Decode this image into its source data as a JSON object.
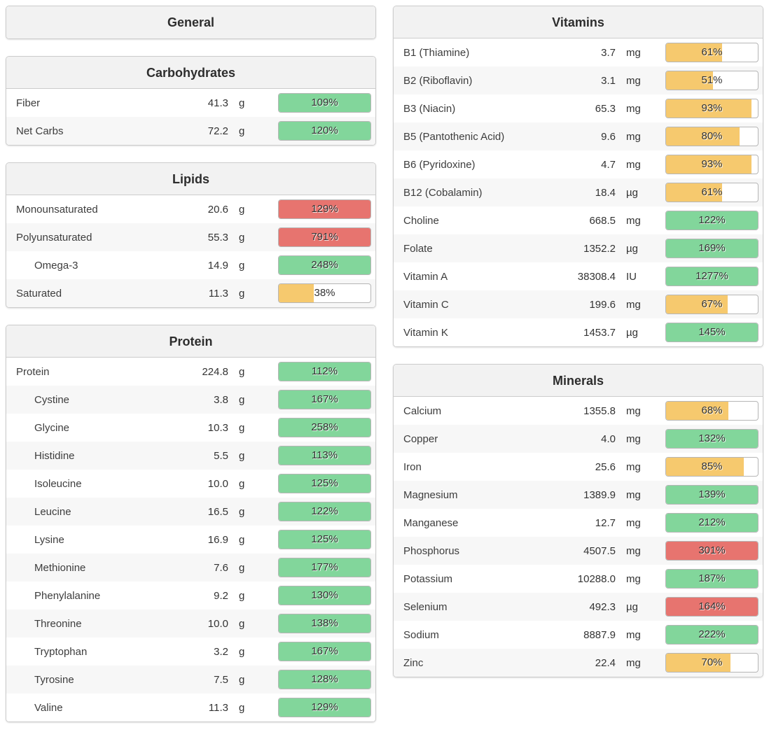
{
  "colors": {
    "green": "#82d69b",
    "yellow": "#f6c96e",
    "red": "#e7746f"
  },
  "columns": {
    "left": [
      {
        "title": "General",
        "rows": []
      },
      {
        "title": "Carbohydrates",
        "rows": [
          {
            "label": "Fiber",
            "indent": false,
            "value": "41.3",
            "unit": "g",
            "percent": 109,
            "percent_label": "109%",
            "color": "green"
          },
          {
            "label": "Net Carbs",
            "indent": false,
            "value": "72.2",
            "unit": "g",
            "percent": 120,
            "percent_label": "120%",
            "color": "green"
          }
        ]
      },
      {
        "title": "Lipids",
        "rows": [
          {
            "label": "Monounsaturated",
            "indent": false,
            "value": "20.6",
            "unit": "g",
            "percent": 129,
            "percent_label": "129%",
            "color": "red"
          },
          {
            "label": "Polyunsaturated",
            "indent": false,
            "value": "55.3",
            "unit": "g",
            "percent": 791,
            "percent_label": "791%",
            "color": "red"
          },
          {
            "label": "Omega-3",
            "indent": true,
            "value": "14.9",
            "unit": "g",
            "percent": 248,
            "percent_label": "248%",
            "color": "green"
          },
          {
            "label": "Saturated",
            "indent": false,
            "value": "11.3",
            "unit": "g",
            "percent": 38,
            "percent_label": "38%",
            "color": "yellow"
          }
        ]
      },
      {
        "title": "Protein",
        "rows": [
          {
            "label": "Protein",
            "indent": false,
            "value": "224.8",
            "unit": "g",
            "percent": 112,
            "percent_label": "112%",
            "color": "green"
          },
          {
            "label": "Cystine",
            "indent": true,
            "value": "3.8",
            "unit": "g",
            "percent": 167,
            "percent_label": "167%",
            "color": "green"
          },
          {
            "label": "Glycine",
            "indent": true,
            "value": "10.3",
            "unit": "g",
            "percent": 258,
            "percent_label": "258%",
            "color": "green"
          },
          {
            "label": "Histidine",
            "indent": true,
            "value": "5.5",
            "unit": "g",
            "percent": 113,
            "percent_label": "113%",
            "color": "green"
          },
          {
            "label": "Isoleucine",
            "indent": true,
            "value": "10.0",
            "unit": "g",
            "percent": 125,
            "percent_label": "125%",
            "color": "green"
          },
          {
            "label": "Leucine",
            "indent": true,
            "value": "16.5",
            "unit": "g",
            "percent": 122,
            "percent_label": "122%",
            "color": "green"
          },
          {
            "label": "Lysine",
            "indent": true,
            "value": "16.9",
            "unit": "g",
            "percent": 125,
            "percent_label": "125%",
            "color": "green"
          },
          {
            "label": "Methionine",
            "indent": true,
            "value": "7.6",
            "unit": "g",
            "percent": 177,
            "percent_label": "177%",
            "color": "green"
          },
          {
            "label": "Phenylalanine",
            "indent": true,
            "value": "9.2",
            "unit": "g",
            "percent": 130,
            "percent_label": "130%",
            "color": "green"
          },
          {
            "label": "Threonine",
            "indent": true,
            "value": "10.0",
            "unit": "g",
            "percent": 138,
            "percent_label": "138%",
            "color": "green"
          },
          {
            "label": "Tryptophan",
            "indent": true,
            "value": "3.2",
            "unit": "g",
            "percent": 167,
            "percent_label": "167%",
            "color": "green"
          },
          {
            "label": "Tyrosine",
            "indent": true,
            "value": "7.5",
            "unit": "g",
            "percent": 128,
            "percent_label": "128%",
            "color": "green"
          },
          {
            "label": "Valine",
            "indent": true,
            "value": "11.3",
            "unit": "g",
            "percent": 129,
            "percent_label": "129%",
            "color": "green"
          }
        ]
      }
    ],
    "right": [
      {
        "title": "Vitamins",
        "rows": [
          {
            "label": "B1 (Thiamine)",
            "indent": false,
            "value": "3.7",
            "unit": "mg",
            "percent": 61,
            "percent_label": "61%",
            "color": "yellow"
          },
          {
            "label": "B2 (Riboflavin)",
            "indent": false,
            "value": "3.1",
            "unit": "mg",
            "percent": 51,
            "percent_label": "51%",
            "color": "yellow"
          },
          {
            "label": "B3 (Niacin)",
            "indent": false,
            "value": "65.3",
            "unit": "mg",
            "percent": 93,
            "percent_label": "93%",
            "color": "yellow"
          },
          {
            "label": "B5 (Pantothenic Acid)",
            "indent": false,
            "value": "9.6",
            "unit": "mg",
            "percent": 80,
            "percent_label": "80%",
            "color": "yellow"
          },
          {
            "label": "B6 (Pyridoxine)",
            "indent": false,
            "value": "4.7",
            "unit": "mg",
            "percent": 93,
            "percent_label": "93%",
            "color": "yellow"
          },
          {
            "label": "B12 (Cobalamin)",
            "indent": false,
            "value": "18.4",
            "unit": "µg",
            "percent": 61,
            "percent_label": "61%",
            "color": "yellow"
          },
          {
            "label": "Choline",
            "indent": false,
            "value": "668.5",
            "unit": "mg",
            "percent": 122,
            "percent_label": "122%",
            "color": "green"
          },
          {
            "label": "Folate",
            "indent": false,
            "value": "1352.2",
            "unit": "µg",
            "percent": 169,
            "percent_label": "169%",
            "color": "green"
          },
          {
            "label": "Vitamin A",
            "indent": false,
            "value": "38308.4",
            "unit": "IU",
            "percent": 1277,
            "percent_label": "1277%",
            "color": "green"
          },
          {
            "label": "Vitamin C",
            "indent": false,
            "value": "199.6",
            "unit": "mg",
            "percent": 67,
            "percent_label": "67%",
            "color": "yellow"
          },
          {
            "label": "Vitamin K",
            "indent": false,
            "value": "1453.7",
            "unit": "µg",
            "percent": 145,
            "percent_label": "145%",
            "color": "green"
          }
        ]
      },
      {
        "title": "Minerals",
        "rows": [
          {
            "label": "Calcium",
            "indent": false,
            "value": "1355.8",
            "unit": "mg",
            "percent": 68,
            "percent_label": "68%",
            "color": "yellow"
          },
          {
            "label": "Copper",
            "indent": false,
            "value": "4.0",
            "unit": "mg",
            "percent": 132,
            "percent_label": "132%",
            "color": "green"
          },
          {
            "label": "Iron",
            "indent": false,
            "value": "25.6",
            "unit": "mg",
            "percent": 85,
            "percent_label": "85%",
            "color": "yellow"
          },
          {
            "label": "Magnesium",
            "indent": false,
            "value": "1389.9",
            "unit": "mg",
            "percent": 139,
            "percent_label": "139%",
            "color": "green"
          },
          {
            "label": "Manganese",
            "indent": false,
            "value": "12.7",
            "unit": "mg",
            "percent": 212,
            "percent_label": "212%",
            "color": "green"
          },
          {
            "label": "Phosphorus",
            "indent": false,
            "value": "4507.5",
            "unit": "mg",
            "percent": 301,
            "percent_label": "301%",
            "color": "red"
          },
          {
            "label": "Potassium",
            "indent": false,
            "value": "10288.0",
            "unit": "mg",
            "percent": 187,
            "percent_label": "187%",
            "color": "green"
          },
          {
            "label": "Selenium",
            "indent": false,
            "value": "492.3",
            "unit": "µg",
            "percent": 164,
            "percent_label": "164%",
            "color": "red"
          },
          {
            "label": "Sodium",
            "indent": false,
            "value": "8887.9",
            "unit": "mg",
            "percent": 222,
            "percent_label": "222%",
            "color": "green"
          },
          {
            "label": "Zinc",
            "indent": false,
            "value": "22.4",
            "unit": "mg",
            "percent": 70,
            "percent_label": "70%",
            "color": "yellow"
          }
        ]
      }
    ]
  }
}
